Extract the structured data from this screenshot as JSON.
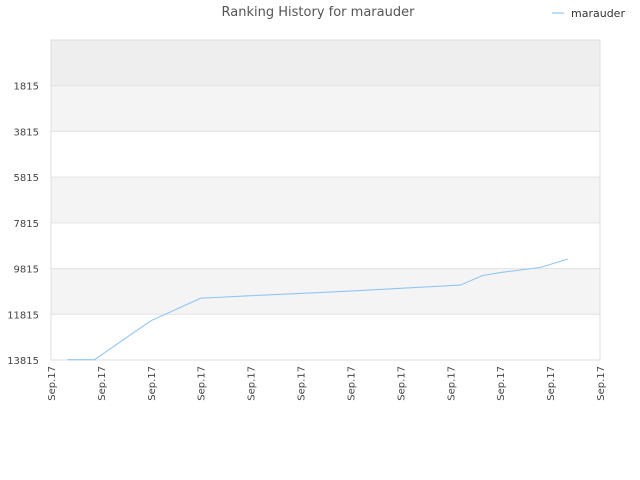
{
  "chart_data": {
    "type": "line",
    "title": "Ranking History for marauder",
    "xlabel": "",
    "ylabel": "",
    "grid": true,
    "legend_position": "top-right",
    "y_inverted": true,
    "ylim": [
      13815,
      -185
    ],
    "y_ticks": [
      "1815",
      "3815",
      "5815",
      "7815",
      "9815",
      "11815",
      "13815"
    ],
    "x_ticks": [
      "Sep.17",
      "Sep.17",
      "Sep.17",
      "Sep.17",
      "Sep.17",
      "Sep.17",
      "Sep.17",
      "Sep.17",
      "Sep.17",
      "Sep.17",
      "Sep.17",
      "Sep.17"
    ],
    "band_colors": [
      "#eeeeee",
      "#f4f4f4",
      "#ffffff"
    ],
    "series": [
      {
        "name": "marauder",
        "color": "#90c6f4",
        "values": [
          {
            "x": 0.33,
            "y": 13800
          },
          {
            "x": 0.87,
            "y": 13800
          },
          {
            "x": 2.0,
            "y": 12100
          },
          {
            "x": 3.0,
            "y": 11110
          },
          {
            "x": 3.3,
            "y": 11080
          },
          {
            "x": 4.0,
            "y": 11000
          },
          {
            "x": 5.0,
            "y": 10900
          },
          {
            "x": 6.0,
            "y": 10800
          },
          {
            "x": 7.0,
            "y": 10680
          },
          {
            "x": 8.2,
            "y": 10540
          },
          {
            "x": 8.65,
            "y": 10120
          },
          {
            "x": 9.0,
            "y": 9990
          },
          {
            "x": 9.8,
            "y": 9770
          },
          {
            "x": 10.35,
            "y": 9400
          }
        ]
      }
    ]
  }
}
